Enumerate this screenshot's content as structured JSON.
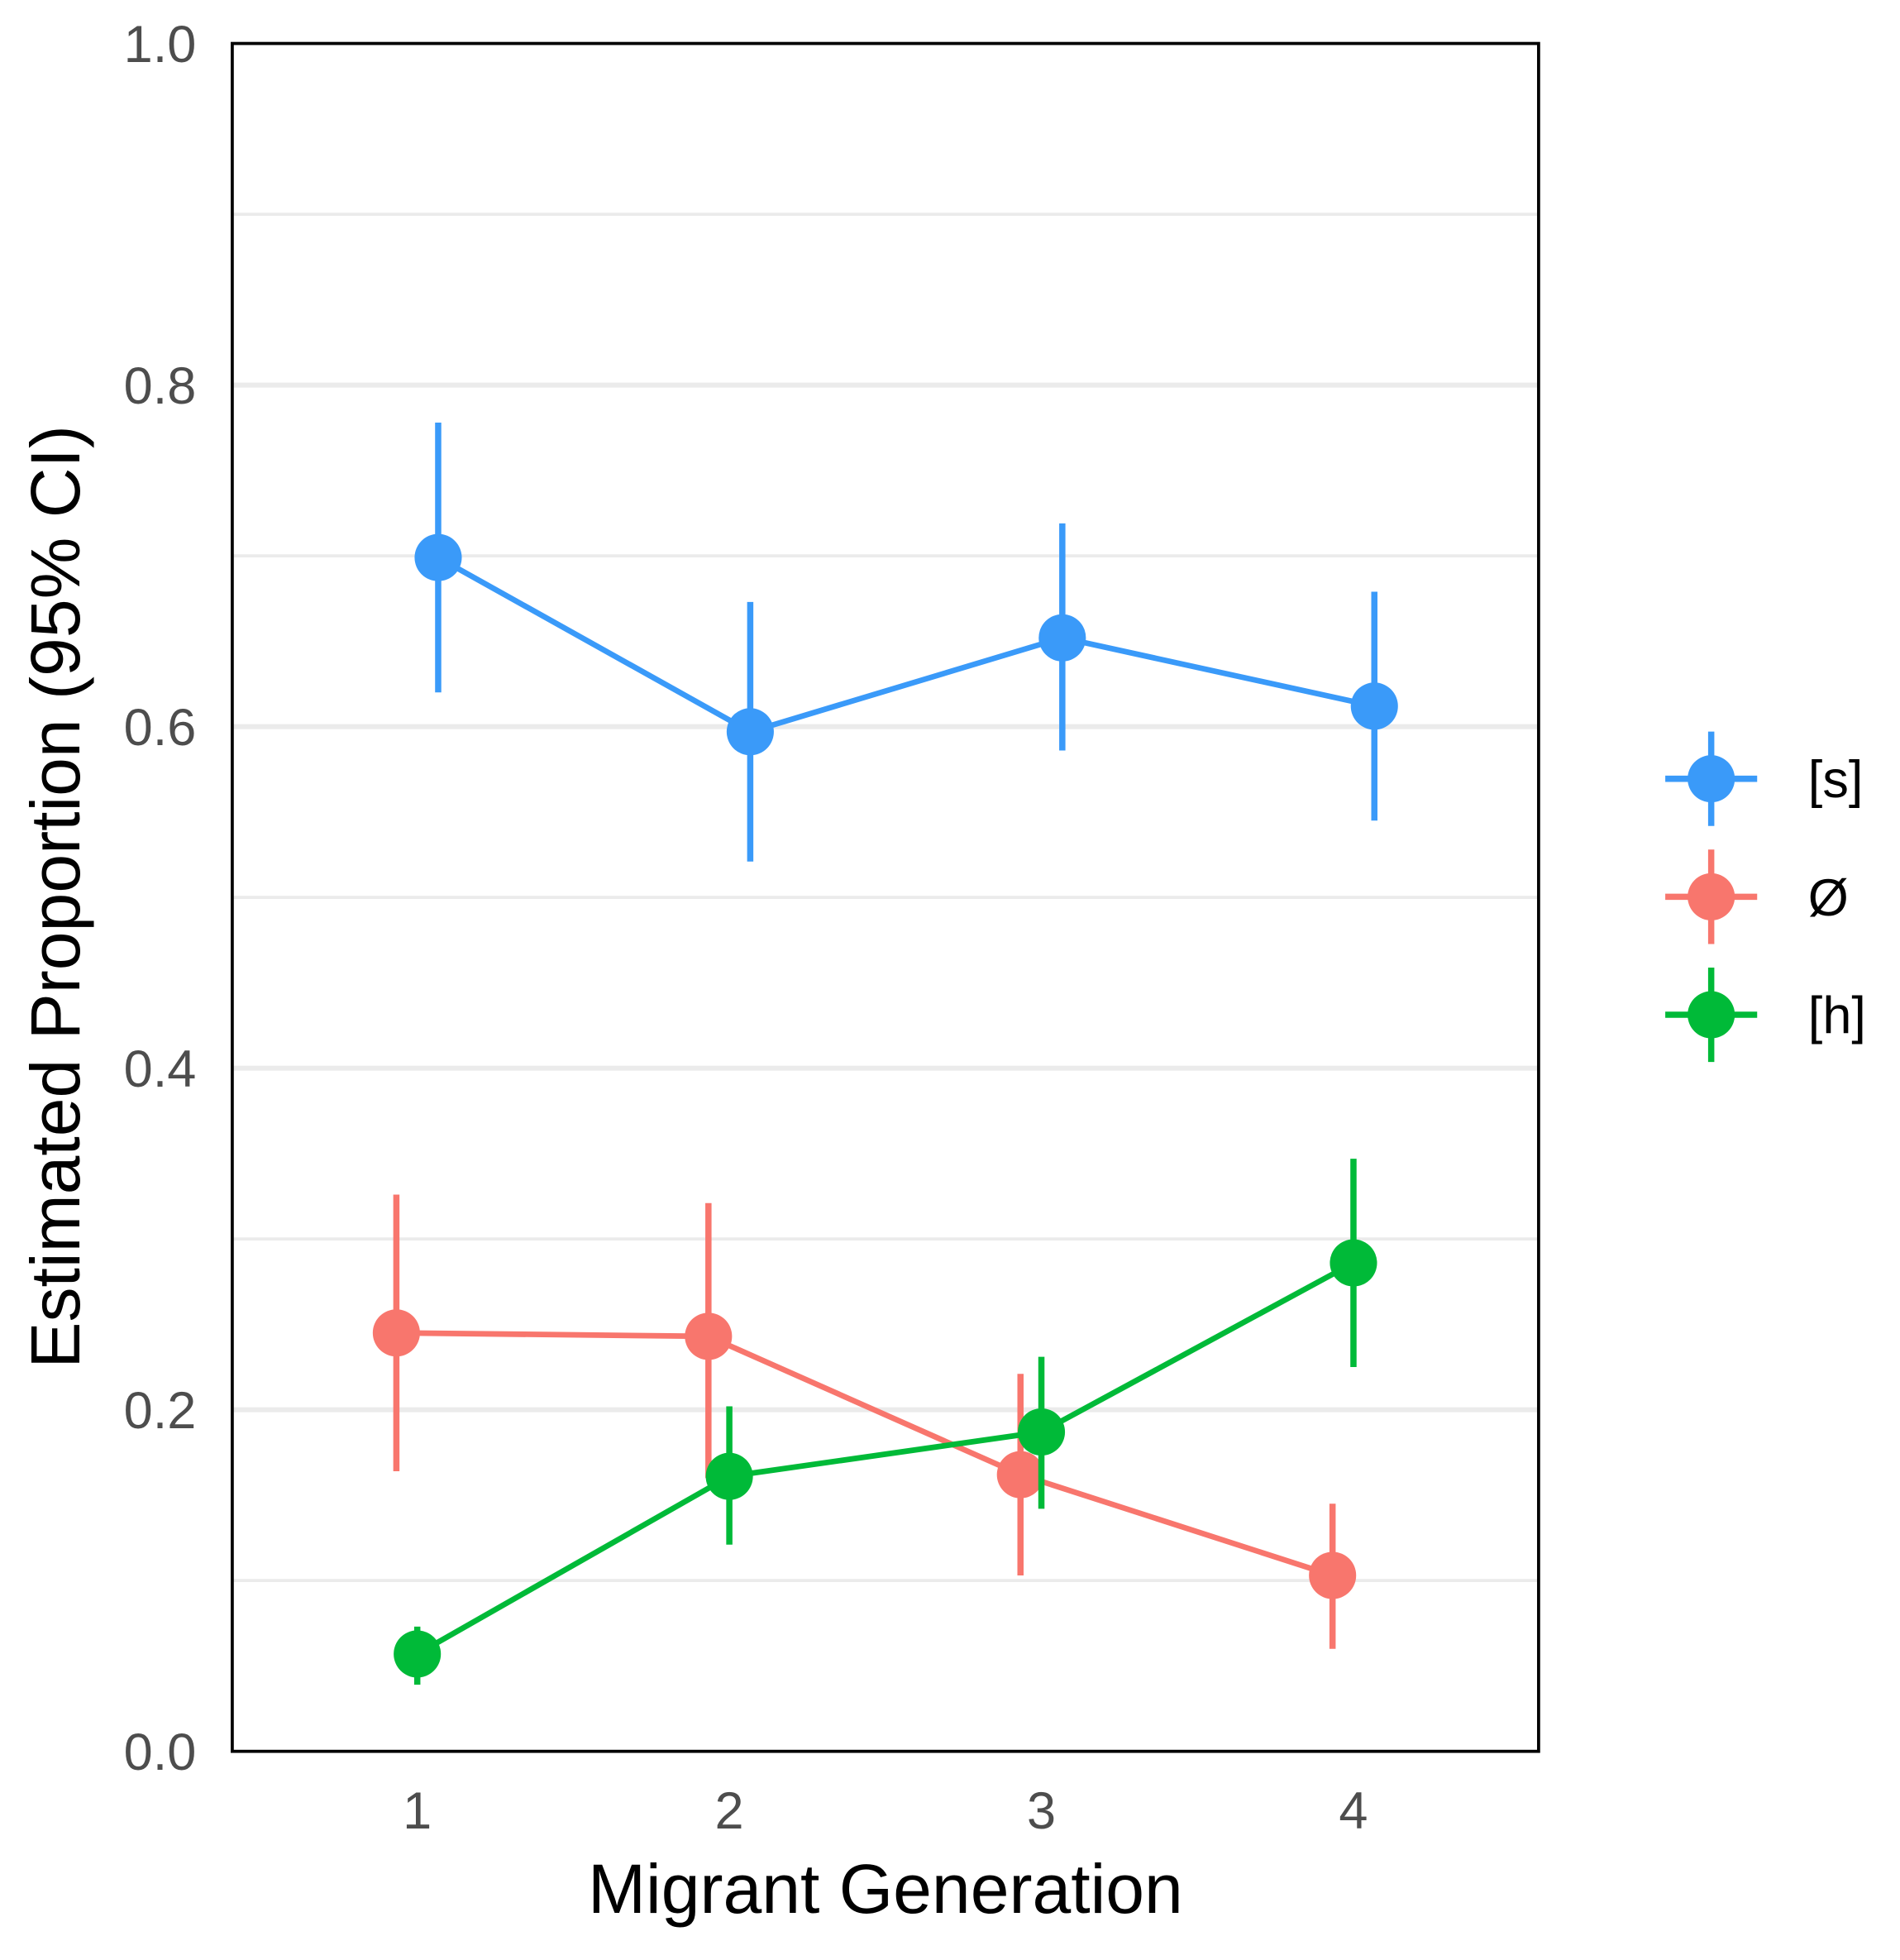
{
  "chart_data": {
    "type": "line",
    "title": "",
    "xlabel": "Migrant Generation",
    "ylabel": "Estimated Proportion (95% CI)",
    "x": [
      1,
      2,
      3,
      4
    ],
    "x_tick_labels": [
      "1",
      "2",
      "3",
      "4"
    ],
    "ylim": [
      0,
      1
    ],
    "y_ticks": [
      0.0,
      0.2,
      0.4,
      0.6,
      0.8,
      1.0
    ],
    "y_tick_labels": [
      "0.0",
      "0.2",
      "0.4",
      "0.6",
      "0.8",
      "1.0"
    ],
    "grid": true,
    "legend_position": "right",
    "series": [
      {
        "name": "[s]",
        "color": "#3a9af9",
        "dodge": 0.067,
        "values": [
          0.699,
          0.597,
          0.652,
          0.612
        ],
        "lower": [
          0.62,
          0.521,
          0.586,
          0.545
        ],
        "upper": [
          0.778,
          0.673,
          0.719,
          0.679
        ]
      },
      {
        "name": "Ø",
        "color": "#f8766d",
        "dodge": -0.067,
        "values": [
          0.245,
          0.243,
          0.162,
          0.103
        ],
        "lower": [
          0.164,
          0.16,
          0.103,
          0.06
        ],
        "upper": [
          0.326,
          0.321,
          0.221,
          0.145
        ]
      },
      {
        "name": "[h]",
        "color": "#00ba38",
        "dodge": 0,
        "values": [
          0.057,
          0.161,
          0.187,
          0.286
        ],
        "lower": [
          0.039,
          0.121,
          0.142,
          0.225
        ],
        "upper": [
          0.073,
          0.202,
          0.231,
          0.347
        ]
      }
    ]
  }
}
